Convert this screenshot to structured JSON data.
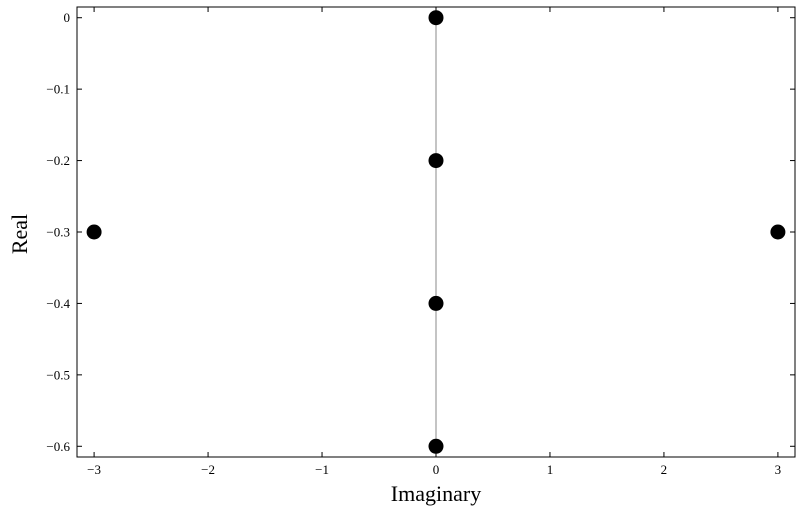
{
  "chart_data": {
    "type": "scatter",
    "title": "",
    "xlabel": "Imaginary",
    "ylabel": "Real",
    "xlim": [
      -3.15,
      3.15
    ],
    "ylim": [
      -0.615,
      0.015
    ],
    "xticks": [
      -3,
      -2,
      -1,
      0,
      1,
      2,
      3
    ],
    "xtick_labels": [
      "−3",
      "−2",
      "−1",
      "0",
      "1",
      "2",
      "3"
    ],
    "yticks": [
      0,
      -0.1,
      -0.2,
      -0.3,
      -0.4,
      -0.5,
      -0.6
    ],
    "ytick_labels": [
      "0",
      "−0.1",
      "−0.2",
      "−0.3",
      "−0.4",
      "−0.5",
      "−0.6"
    ],
    "grid": false,
    "reference_line": {
      "x": 0,
      "color": "#888888"
    },
    "points": [
      {
        "x": 0,
        "y": 0
      },
      {
        "x": 0,
        "y": -0.2
      },
      {
        "x": 0,
        "y": -0.4
      },
      {
        "x": 0,
        "y": -0.6
      },
      {
        "x": -3,
        "y": -0.3
      },
      {
        "x": 3,
        "y": -0.3
      }
    ],
    "marker_color": "#000000"
  }
}
